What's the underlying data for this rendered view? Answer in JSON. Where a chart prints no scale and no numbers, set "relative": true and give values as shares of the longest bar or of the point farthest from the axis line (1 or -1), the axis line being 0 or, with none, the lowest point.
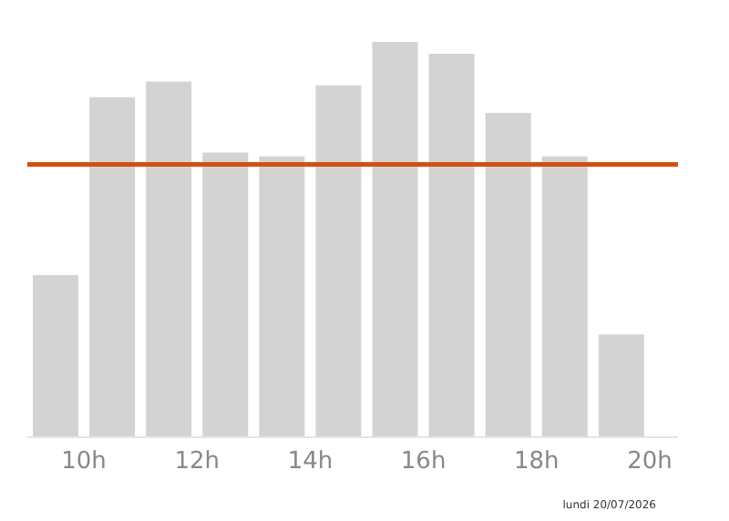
{
  "chart_data": {
    "type": "bar",
    "relative": true,
    "x": [
      9.5,
      10.5,
      11.5,
      12.5,
      13.5,
      14.5,
      15.5,
      16.5,
      17.5,
      18.5,
      19.5
    ],
    "values": [
      0.41,
      0.86,
      0.9,
      0.72,
      0.71,
      0.89,
      1,
      0.97,
      0.82,
      0.71,
      0.26
    ],
    "color": "#d3d3d3",
    "xlim": [
      9,
      20.5
    ],
    "xticks": [
      {
        "value": 10,
        "label": "10h"
      },
      {
        "value": 12,
        "label": "12h"
      },
      {
        "value": 14,
        "label": "14h"
      },
      {
        "value": 16,
        "label": "16h"
      },
      {
        "value": 18,
        "label": "18h"
      },
      {
        "value": 20,
        "label": "20h"
      }
    ],
    "ref_lines": [
      {
        "axis": "y",
        "value": 0.69,
        "color": "#d4500f"
      }
    ],
    "grid": false,
    "annotations": [
      "lundi 20/07/2026"
    ]
  }
}
